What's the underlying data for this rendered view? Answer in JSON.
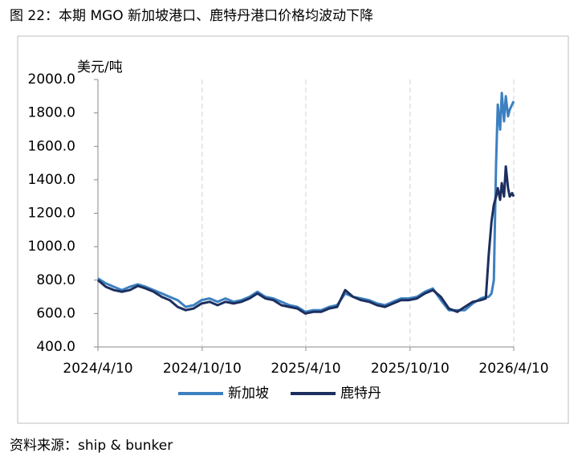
{
  "chart_data": {
    "type": "line",
    "title": "图 22：本期 MGO 新加坡港口、鹿特丹港口价格均波动下降",
    "y_label": "美元/吨",
    "source": "资料来源：ship & bunker",
    "x": [
      "2024/4/10",
      "2024/4/24",
      "2024/5/8",
      "2024/5/22",
      "2024/6/5",
      "2024/6/19",
      "2024/7/3",
      "2024/7/17",
      "2024/7/31",
      "2024/8/14",
      "2024/8/28",
      "2024/9/11",
      "2024/9/25",
      "2024/10/9",
      "2024/10/23",
      "2024/11/6",
      "2024/11/20",
      "2024/12/4",
      "2024/12/18",
      "2025/1/1",
      "2025/1/15",
      "2025/1/29",
      "2025/2/12",
      "2025/2/26",
      "2025/3/12",
      "2025/3/26",
      "2025/4/9",
      "2025/4/23",
      "2025/5/7",
      "2025/5/21",
      "2025/6/4",
      "2025/6/18",
      "2025/7/2",
      "2025/7/16",
      "2025/7/30",
      "2025/8/13",
      "2025/8/27",
      "2025/9/10",
      "2025/9/24",
      "2025/10/8",
      "2025/10/22",
      "2025/11/5",
      "2025/11/19",
      "2025/12/3",
      "2025/12/17",
      "2026/1/1",
      "2026/1/14",
      "2026/1/28",
      "2026/2/11",
      "2026/2/20",
      "2026/2/25",
      "2026/3/2",
      "2026/3/6",
      "2026/3/10",
      "2026/3/13",
      "2026/3/17",
      "2026/3/20",
      "2026/3/24",
      "2026/3/27",
      "2026/3/31",
      "2026/4/3",
      "2026/4/7",
      "2026/4/10"
    ],
    "series": [
      {
        "name": "新加坡",
        "color": "#3c80c0",
        "values": [
          810,
          780,
          760,
          740,
          760,
          775,
          760,
          740,
          720,
          700,
          680,
          640,
          650,
          680,
          690,
          670,
          690,
          670,
          680,
          700,
          730,
          700,
          690,
          670,
          650,
          640,
          610,
          620,
          620,
          640,
          650,
          720,
          700,
          690,
          680,
          660,
          650,
          670,
          690,
          690,
          700,
          730,
          750,
          680,
          620,
          620,
          620,
          660,
          690,
          700,
          700,
          720,
          800,
          1500,
          1850,
          1700,
          1920,
          1750,
          1900,
          1780,
          1820,
          1850,
          1870
        ]
      },
      {
        "name": "鹿特丹",
        "color": "#1c2f5e",
        "values": [
          800,
          760,
          740,
          730,
          740,
          765,
          750,
          730,
          700,
          680,
          640,
          620,
          630,
          660,
          670,
          650,
          670,
          660,
          670,
          690,
          720,
          690,
          680,
          650,
          640,
          630,
          600,
          610,
          610,
          630,
          640,
          740,
          700,
          680,
          670,
          650,
          640,
          660,
          680,
          680,
          690,
          720,
          740,
          700,
          630,
          610,
          640,
          670,
          680,
          690,
          950,
          1150,
          1250,
          1300,
          1350,
          1280,
          1380,
          1300,
          1480,
          1350,
          1300,
          1320,
          1300
        ]
      }
    ],
    "xlim": [
      "2024/4/10",
      "2026/4/10"
    ],
    "xticks": [
      "2024/4/10",
      "2024/10/10",
      "2025/4/10",
      "2025/10/10",
      "2026/4/10"
    ],
    "ylim": [
      400,
      2000
    ],
    "yticks": [
      {
        "value": 400,
        "label": "400.0"
      },
      {
        "value": 600,
        "label": "600.0"
      },
      {
        "value": 800,
        "label": "800.0"
      },
      {
        "value": 1000,
        "label": "1000.0"
      },
      {
        "value": 1200,
        "label": "1200.0"
      },
      {
        "value": 1400,
        "label": "1400.0"
      },
      {
        "value": 1600,
        "label": "1600.0"
      },
      {
        "value": 1800,
        "label": "1800.0"
      },
      {
        "value": 2000,
        "label": "2000.0"
      }
    ],
    "grid": "x",
    "legend": "bottom"
  }
}
